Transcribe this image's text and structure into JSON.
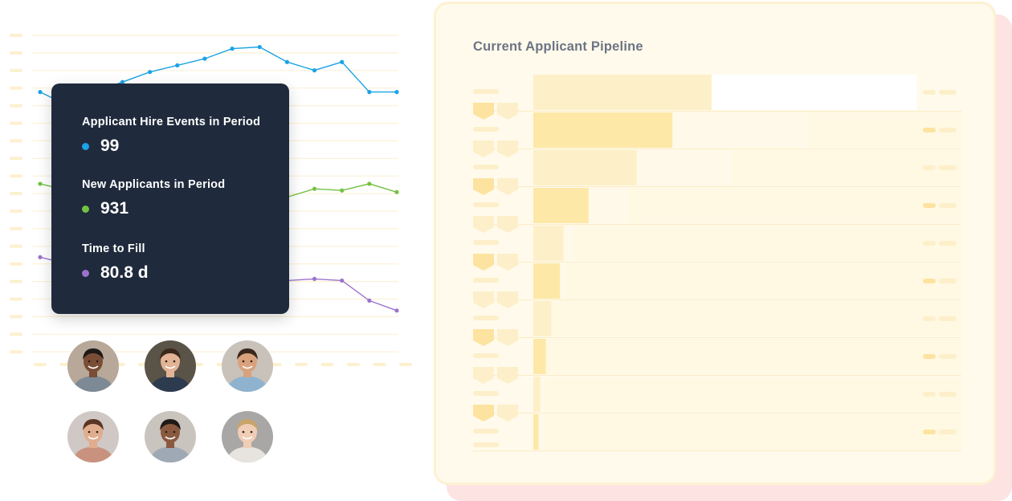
{
  "chart_data": [
    {
      "type": "line",
      "x": [
        1,
        2,
        3,
        4,
        5,
        6,
        7,
        8,
        9,
        10,
        11,
        12,
        13,
        14
      ],
      "ylim": [
        0,
        18
      ],
      "grid": true,
      "series": [
        {
          "values": [
            14.6,
            13.8,
            14.6,
            15.2,
            15.8,
            16.2,
            16.6,
            17.2,
            17.3,
            16.4,
            15.9,
            16.4,
            14.6,
            14.6
          ],
          "color": "#1ba3e6"
        },
        {
          "values": [
            9.1,
            8.7,
            8.2,
            7.8,
            7.5,
            7.3,
            7.6,
            7.8,
            8.2,
            8.3,
            8.8,
            8.7,
            9.1,
            8.6
          ],
          "color": "#73c242"
        },
        {
          "values": [
            4.7,
            4.3,
            3.9,
            3.6,
            2.4,
            2.0,
            1.8,
            2.9,
            3.0,
            3.3,
            3.4,
            3.3,
            2.1,
            1.5
          ],
          "color": "#9b73cc"
        }
      ]
    },
    {
      "type": "bar",
      "title": "Current Applicant Pipeline",
      "orientation": "horizontal",
      "values": [
        100,
        78,
        58,
        31,
        17,
        15,
        10,
        7,
        4,
        3
      ],
      "xlim": [
        0,
        100
      ]
    }
  ],
  "tooltip": {
    "items": [
      {
        "label": "Applicant Hire Events in Period",
        "value": "99",
        "color": "#1ba3e6"
      },
      {
        "label": "New Applicants in Period",
        "value": "931",
        "color": "#73c242"
      },
      {
        "label": "Time to Fill",
        "value": "80.8 d",
        "color": "#9b73cc"
      }
    ]
  },
  "avatars": [
    {
      "icon": "person-photo-icon",
      "skin": "#7a4e36",
      "bg": "#b7a89a",
      "shirt": "#7d8a95",
      "hair": "#1e1a18"
    },
    {
      "icon": "person-photo-icon",
      "skin": "#e2b394",
      "bg": "#5a5348",
      "shirt": "#2d3b4f",
      "hair": "#3b281d"
    },
    {
      "icon": "person-photo-icon",
      "skin": "#d9a27d",
      "bg": "#c8c2ba",
      "shirt": "#8fb3cf",
      "hair": "#3a271c"
    },
    {
      "icon": "person-photo-icon",
      "skin": "#e0ad8e",
      "bg": "#cfc8c4",
      "shirt": "#c9927f",
      "hair": "#5a3424"
    },
    {
      "icon": "person-photo-icon",
      "skin": "#8a5a40",
      "bg": "#c9c4bd",
      "shirt": "#9fa9b6",
      "hair": "#1f1a18"
    },
    {
      "icon": "person-photo-icon",
      "skin": "#f0cdb6",
      "bg": "#a9a7a6",
      "shirt": "#e7e3df",
      "hair": "#c9a46a"
    }
  ]
}
